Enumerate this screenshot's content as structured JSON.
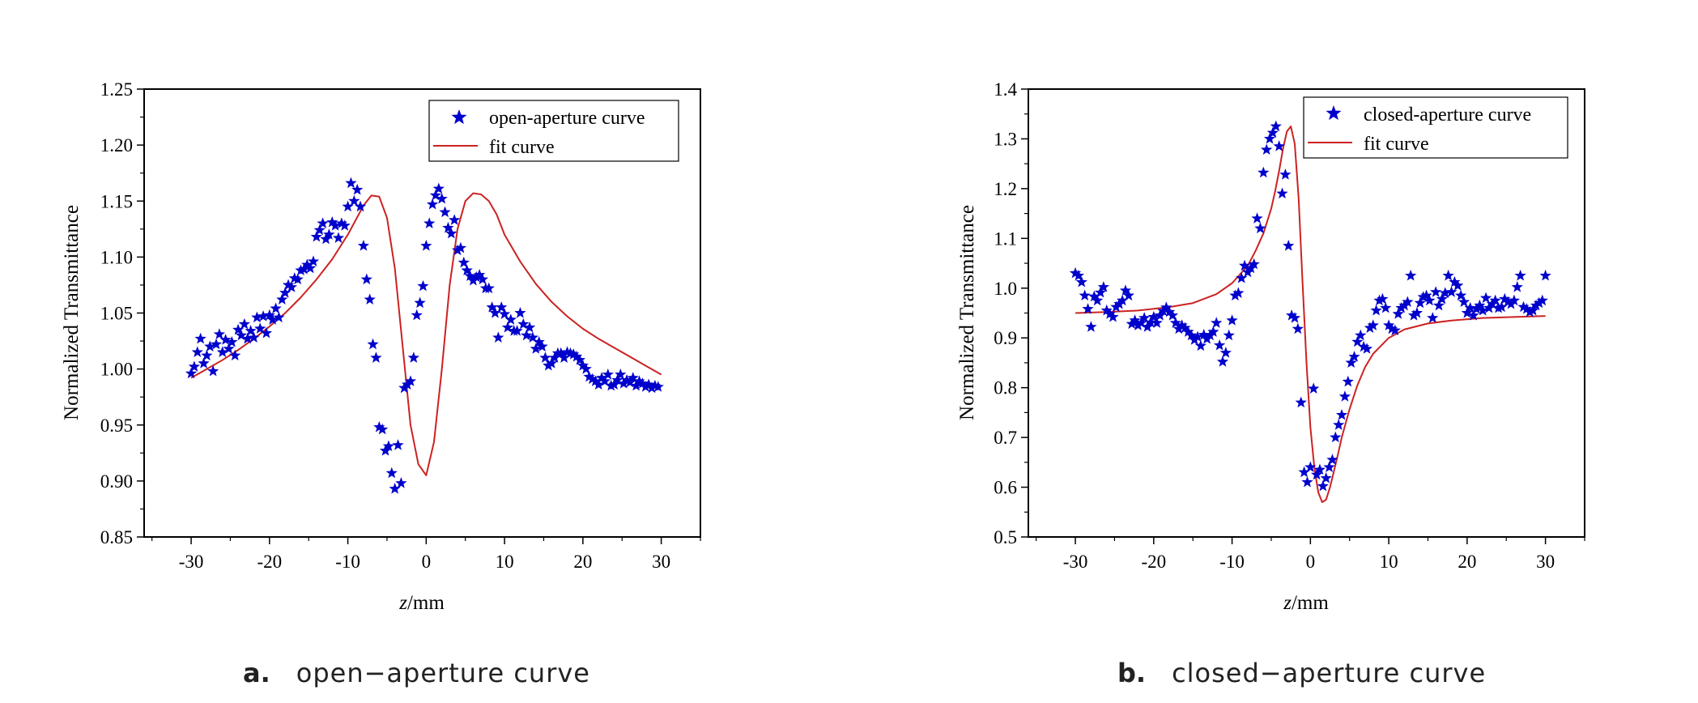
{
  "chart_data": [
    {
      "type": "scatter",
      "caption_letter": "a.",
      "caption": "open−aperture curve",
      "xlabel_italic": "z",
      "xlabel_rest": "/mm",
      "ylabel": "Normalized Transmittance",
      "xlim": [
        -36,
        35
      ],
      "ylim": [
        0.85,
        1.25
      ],
      "xticks": [
        -30,
        -20,
        -10,
        0,
        10,
        20,
        30
      ],
      "yticks": [
        0.85,
        0.9,
        0.95,
        1.0,
        1.05,
        1.1,
        1.15,
        1.2,
        1.25
      ],
      "ytick_labels": [
        "0.85",
        "0.90",
        "0.95",
        "1.00",
        "1.05",
        "1.10",
        "1.15",
        "1.20",
        "1.25"
      ],
      "grid": false,
      "legend_position": "top-right",
      "colors": {
        "markers": "#0000cc",
        "fit": "#cc2222"
      },
      "series": [
        {
          "name": "open-aperture curve",
          "kind": "markers",
          "x": [
            -30.0,
            -29.6,
            -29.2,
            -28.8,
            -28.4,
            -28.0,
            -27.6,
            -27.2,
            -26.8,
            -26.4,
            -26.0,
            -25.6,
            -25.2,
            -24.8,
            -24.4,
            -24.0,
            -23.6,
            -23.2,
            -22.8,
            -22.4,
            -22.0,
            -21.6,
            -21.2,
            -20.8,
            -20.4,
            -20.0,
            -19.6,
            -19.2,
            -18.8,
            -18.4,
            -18.0,
            -17.6,
            -17.2,
            -16.8,
            -16.4,
            -16.0,
            -15.6,
            -15.2,
            -14.8,
            -14.4,
            -14.0,
            -13.6,
            -13.2,
            -12.8,
            -12.4,
            -12.0,
            -11.6,
            -11.2,
            -10.8,
            -10.4,
            -10.0,
            -9.6,
            -9.2,
            -8.8,
            -8.4,
            -8.0,
            -7.6,
            -7.2,
            -6.8,
            -6.4,
            -6.0,
            -5.6,
            -5.2,
            -4.8,
            -4.4,
            -4.0,
            -3.6,
            -3.2,
            -2.8,
            -2.4,
            -2.0,
            -1.6,
            -1.2,
            -0.8,
            -0.4,
            0.0,
            0.4,
            0.8,
            1.2,
            1.6,
            2.0,
            2.4,
            2.8,
            3.2,
            3.6,
            4.0,
            4.4,
            4.8,
            5.2,
            5.6,
            6.0,
            6.4,
            6.8,
            7.2,
            7.6,
            8.0,
            8.4,
            8.8,
            9.2,
            9.6,
            10.0,
            10.4,
            10.8,
            11.2,
            11.6,
            12.0,
            12.4,
            12.8,
            13.2,
            13.6,
            14.0,
            14.4,
            14.8,
            15.2,
            15.6,
            16.0,
            16.4,
            16.8,
            17.2,
            17.6,
            18.0,
            18.4,
            18.8,
            19.2,
            19.6,
            20.0,
            20.4,
            20.8,
            21.2,
            21.6,
            22.0,
            22.4,
            22.8,
            23.2,
            23.6,
            24.0,
            24.4,
            24.8,
            25.2,
            25.6,
            26.0,
            26.4,
            26.8,
            27.2,
            27.6,
            28.0,
            28.4,
            28.8,
            29.2,
            29.6
          ],
          "y": [
            0.996,
            1.002,
            1.015,
            1.027,
            1.005,
            1.012,
            1.02,
            0.998,
            1.022,
            1.031,
            1.015,
            1.026,
            1.018,
            1.024,
            1.012,
            1.035,
            1.03,
            1.04,
            1.027,
            1.034,
            1.028,
            1.046,
            1.036,
            1.047,
            1.032,
            1.048,
            1.044,
            1.054,
            1.046,
            1.062,
            1.068,
            1.075,
            1.073,
            1.081,
            1.08,
            1.088,
            1.089,
            1.093,
            1.09,
            1.096,
            1.118,
            1.124,
            1.13,
            1.116,
            1.12,
            1.131,
            1.128,
            1.117,
            1.13,
            1.128,
            1.145,
            1.166,
            1.15,
            1.16,
            1.145,
            1.11,
            1.08,
            1.062,
            1.022,
            1.01,
            0.948,
            0.946,
            0.927,
            0.931,
            0.907,
            0.893,
            0.932,
            0.898,
            0.983,
            0.986,
            0.989,
            1.01,
            1.048,
            1.059,
            1.074,
            1.11,
            1.13,
            1.147,
            1.155,
            1.161,
            1.152,
            1.14,
            1.126,
            1.121,
            1.133,
            1.106,
            1.108,
            1.095,
            1.088,
            1.083,
            1.079,
            1.082,
            1.084,
            1.08,
            1.072,
            1.072,
            1.055,
            1.05,
            1.028,
            1.055,
            1.049,
            1.037,
            1.044,
            1.034,
            1.034,
            1.05,
            1.04,
            1.03,
            1.037,
            1.028,
            1.018,
            1.024,
            1.02,
            1.01,
            1.003,
            1.005,
            1.01,
            1.014,
            1.014,
            1.01,
            1.015,
            1.014,
            1.013,
            1.011,
            1.008,
            1.003,
            1.0,
            0.993,
            0.991,
            0.989,
            0.986,
            0.992,
            0.989,
            0.995,
            0.985,
            0.986,
            0.99,
            0.995,
            0.987,
            0.99,
            0.988,
            0.992,
            0.985,
            0.989,
            0.987,
            0.984,
            0.986,
            0.983,
            0.985,
            0.984
          ]
        },
        {
          "name": "fit curve",
          "kind": "line",
          "x": [
            -30,
            -28,
            -26,
            -24,
            -22,
            -20,
            -18,
            -16,
            -14,
            -12,
            -10,
            -9,
            -8,
            -7,
            -6,
            -5,
            -4,
            -3,
            -2,
            -1,
            0,
            1,
            2,
            3,
            4,
            5,
            6,
            7,
            8,
            9,
            10,
            12,
            14,
            16,
            18,
            20,
            22,
            24,
            26,
            28,
            30
          ],
          "y": [
            0.992,
            1.0,
            1.008,
            1.017,
            1.027,
            1.038,
            1.05,
            1.064,
            1.08,
            1.098,
            1.12,
            1.133,
            1.146,
            1.155,
            1.154,
            1.135,
            1.09,
            1.02,
            0.95,
            0.915,
            0.905,
            0.935,
            1.0,
            1.075,
            1.125,
            1.15,
            1.157,
            1.156,
            1.15,
            1.138,
            1.12,
            1.096,
            1.076,
            1.06,
            1.047,
            1.036,
            1.027,
            1.019,
            1.011,
            1.003,
            0.995
          ]
        }
      ]
    },
    {
      "type": "scatter",
      "caption_letter": "b.",
      "caption": "closed−aperture curve",
      "xlabel_italic": "z",
      "xlabel_rest": "/mm",
      "ylabel": "Normalized Transmittance",
      "xlim": [
        -36,
        35
      ],
      "ylim": [
        0.5,
        1.4
      ],
      "xticks": [
        -30,
        -20,
        -10,
        0,
        10,
        20,
        30
      ],
      "yticks": [
        0.5,
        0.6,
        0.7,
        0.8,
        0.9,
        1.0,
        1.1,
        1.2,
        1.3,
        1.4
      ],
      "ytick_labels": [
        "0.5",
        "0.6",
        "0.7",
        "0.8",
        "0.9",
        "1.0",
        "1.1",
        "1.2",
        "1.3",
        "1.4"
      ],
      "grid": false,
      "legend_position": "top-right",
      "colors": {
        "markers": "#0000cc",
        "fit": "#cc2222"
      },
      "series": [
        {
          "name": "closed-aperture curve",
          "kind": "markers",
          "x": [
            -30.0,
            -29.6,
            -29.2,
            -28.8,
            -28.4,
            -28.0,
            -27.6,
            -27.2,
            -26.8,
            -26.4,
            -26.0,
            -25.6,
            -25.2,
            -24.8,
            -24.4,
            -24.0,
            -23.6,
            -23.2,
            -22.8,
            -22.4,
            -22.0,
            -21.6,
            -21.2,
            -20.8,
            -20.4,
            -20.0,
            -19.6,
            -19.2,
            -18.8,
            -18.4,
            -18.0,
            -17.6,
            -17.2,
            -16.8,
            -16.4,
            -16.0,
            -15.6,
            -15.2,
            -14.8,
            -14.4,
            -14.0,
            -13.6,
            -13.2,
            -12.8,
            -12.4,
            -12.0,
            -11.6,
            -11.2,
            -10.8,
            -10.4,
            -10.0,
            -9.6,
            -9.2,
            -8.8,
            -8.4,
            -8.0,
            -7.6,
            -7.2,
            -6.8,
            -6.4,
            -6.0,
            -5.6,
            -5.2,
            -4.8,
            -4.4,
            -4.0,
            -3.6,
            -3.2,
            -2.8,
            -2.4,
            -2.0,
            -1.6,
            -1.2,
            -0.8,
            -0.4,
            0.0,
            0.4,
            0.8,
            1.2,
            1.6,
            2.0,
            2.4,
            2.8,
            3.2,
            3.6,
            4.0,
            4.4,
            4.8,
            5.2,
            5.6,
            6.0,
            6.4,
            6.8,
            7.2,
            7.6,
            8.0,
            8.4,
            8.8,
            9.2,
            9.6,
            10.0,
            10.4,
            10.8,
            11.2,
            11.6,
            12.0,
            12.4,
            12.8,
            13.2,
            13.6,
            14.0,
            14.4,
            14.8,
            15.2,
            15.6,
            16.0,
            16.4,
            16.8,
            17.2,
            17.6,
            18.0,
            18.4,
            18.8,
            19.2,
            19.6,
            20.0,
            20.4,
            20.8,
            21.2,
            21.6,
            22.0,
            22.4,
            22.8,
            23.2,
            23.6,
            24.0,
            24.4,
            24.8,
            25.2,
            25.6,
            26.0,
            26.4,
            26.8,
            27.2,
            27.6,
            28.0,
            28.4,
            28.8,
            29.2,
            29.6,
            30.0
          ],
          "y": [
            1.03,
            1.025,
            1.012,
            0.985,
            0.958,
            0.922,
            0.983,
            0.975,
            0.991,
            1.002,
            0.955,
            0.948,
            0.942,
            0.962,
            0.968,
            0.975,
            0.995,
            0.985,
            0.928,
            0.935,
            0.925,
            0.93,
            0.94,
            0.922,
            0.931,
            0.942,
            0.93,
            0.945,
            0.954,
            0.961,
            0.952,
            0.945,
            0.93,
            0.918,
            0.925,
            0.92,
            0.912,
            0.905,
            0.896,
            0.902,
            0.884,
            0.906,
            0.898,
            0.905,
            0.912,
            0.93,
            0.885,
            0.852,
            0.87,
            0.905,
            0.935,
            0.985,
            0.99,
            1.02,
            1.045,
            1.032,
            1.04,
            1.048,
            1.14,
            1.12,
            1.232,
            1.278,
            1.3,
            1.312,
            1.325,
            1.285,
            1.19,
            1.228,
            1.085,
            0.945,
            0.94,
            0.918,
            0.77,
            0.63,
            0.61,
            0.64,
            0.798,
            0.625,
            0.635,
            0.602,
            0.618,
            0.64,
            0.655,
            0.7,
            0.725,
            0.745,
            0.782,
            0.812,
            0.85,
            0.862,
            0.892,
            0.905,
            0.882,
            0.878,
            0.92,
            0.925,
            0.955,
            0.975,
            0.978,
            0.96,
            0.925,
            0.918,
            0.915,
            0.948,
            0.96,
            0.965,
            0.972,
            1.025,
            0.945,
            0.95,
            0.97,
            0.982,
            0.985,
            0.975,
            0.94,
            0.992,
            0.965,
            0.978,
            0.99,
            1.025,
            0.992,
            1.012,
            1.005,
            0.985,
            0.972,
            0.95,
            0.96,
            0.945,
            0.958,
            0.965,
            0.955,
            0.98,
            0.96,
            0.968,
            0.975,
            0.96,
            0.962,
            0.978,
            0.972,
            0.968,
            0.975,
            1.002,
            1.025,
            0.962,
            0.958,
            0.952,
            0.955,
            0.965,
            0.97,
            0.975,
            1.025
          ]
        },
        {
          "name": "fit curve",
          "kind": "line",
          "x": [
            -30,
            -26,
            -22,
            -18,
            -15,
            -12,
            -10,
            -8,
            -7,
            -6,
            -5,
            -4.5,
            -4,
            -3.5,
            -3,
            -2.5,
            -2,
            -1.5,
            -1,
            -0.5,
            0,
            0.5,
            1,
            1.5,
            2,
            2.5,
            3,
            3.5,
            4,
            5,
            6,
            7,
            8,
            10,
            12,
            15,
            18,
            22,
            26,
            30
          ],
          "y": [
            0.95,
            0.952,
            0.955,
            0.962,
            0.97,
            0.988,
            1.01,
            1.045,
            1.075,
            1.11,
            1.16,
            1.195,
            1.235,
            1.28,
            1.315,
            1.325,
            1.29,
            1.18,
            1.01,
            0.85,
            0.72,
            0.64,
            0.59,
            0.57,
            0.575,
            0.6,
            0.632,
            0.665,
            0.7,
            0.757,
            0.805,
            0.842,
            0.868,
            0.9,
            0.917,
            0.929,
            0.935,
            0.94,
            0.942,
            0.944
          ]
        }
      ]
    }
  ]
}
